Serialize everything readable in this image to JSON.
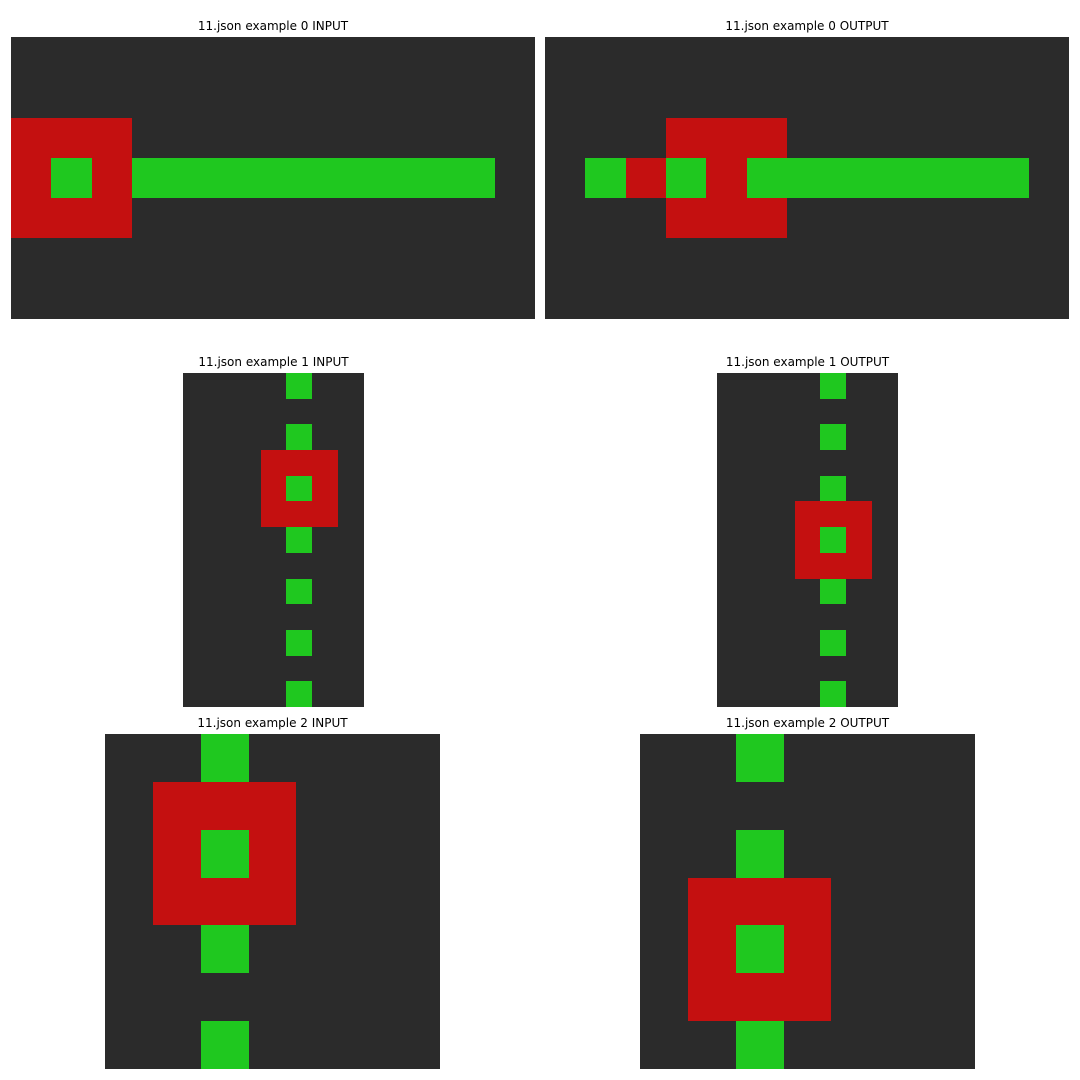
{
  "colors": {
    "background": "#ffffff",
    "0": "#2b2b2b",
    "2": "#c41010",
    "3": "#1fc81f"
  },
  "panels": [
    {
      "title": "11.json example 0 INPUT",
      "grid": [
        "0000000000000",
        "0000000000000",
        "2220000000000",
        "2323333333330",
        "2220000000000",
        "0000000000000",
        "0000000000000"
      ]
    },
    {
      "title": "11.json example 0 OUTPUT",
      "grid": [
        "0000000000000",
        "0000000000000",
        "0002220000000",
        "0323233333330",
        "0002220000000",
        "0000000000000",
        "0000000000000"
      ]
    },
    {
      "title": "11.json example 1 INPUT",
      "grid": [
        "0000300",
        "0000000",
        "0000300",
        "0002220",
        "0002320",
        "0002220",
        "0000300",
        "0000000",
        "0000300",
        "0000000",
        "0000300",
        "0000000",
        "0000300"
      ]
    },
    {
      "title": "11.json example 1 OUTPUT",
      "grid": [
        "0000300",
        "0000000",
        "0000300",
        "0000000",
        "0000300",
        "0002220",
        "0002320",
        "0002220",
        "0000300",
        "0000000",
        "0000300",
        "0000000",
        "0000300"
      ]
    },
    {
      "title": "11.json example 2 INPUT",
      "grid": [
        "0030000",
        "0222000",
        "0232000",
        "0222000",
        "0030000",
        "0000000",
        "0030000"
      ]
    },
    {
      "title": "11.json example 2 OUTPUT",
      "grid": [
        "0030000",
        "0000000",
        "0030000",
        "0222000",
        "0232000",
        "0222000",
        "0030000"
      ]
    }
  ]
}
